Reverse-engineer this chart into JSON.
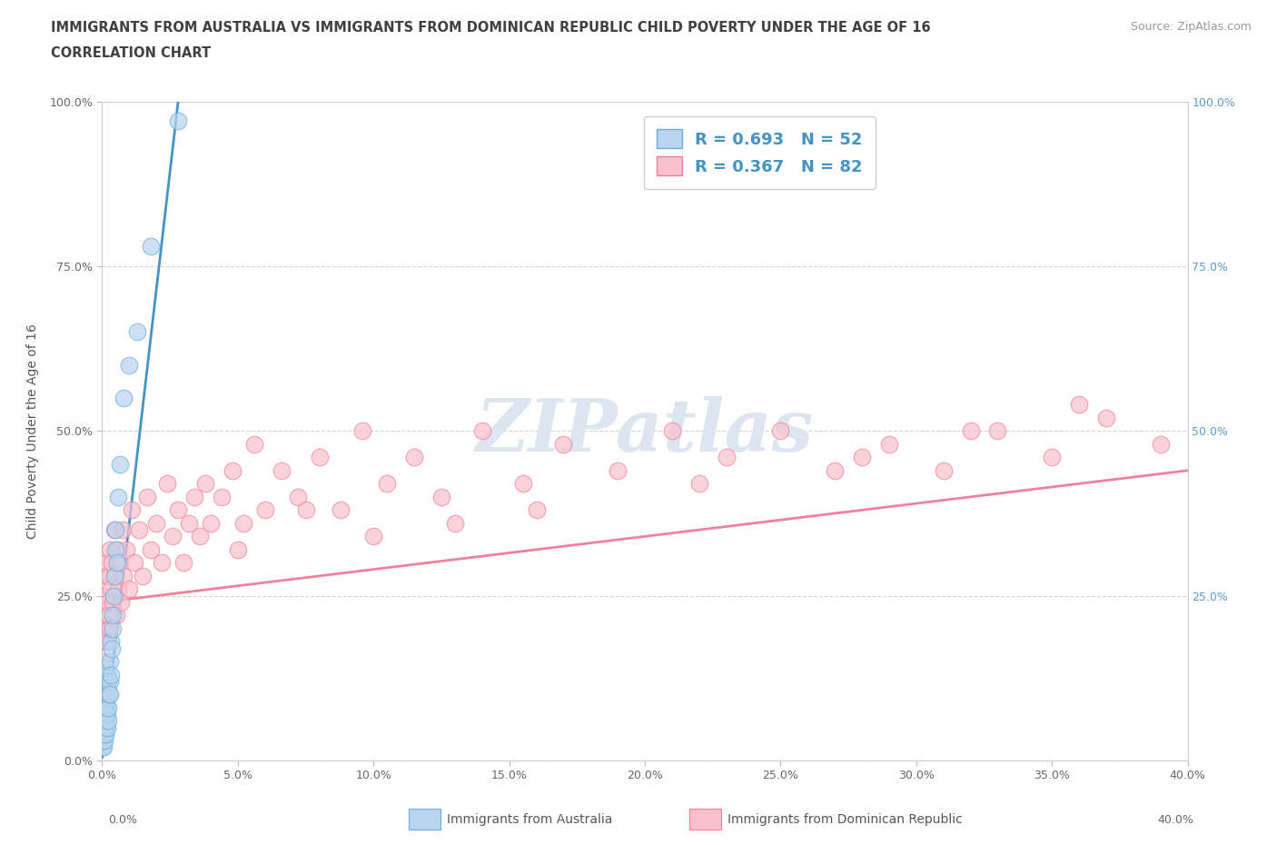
{
  "title_line1": "IMMIGRANTS FROM AUSTRALIA VS IMMIGRANTS FROM DOMINICAN REPUBLIC CHILD POVERTY UNDER THE AGE OF 16",
  "title_line2": "CORRELATION CHART",
  "source_text": "Source: ZipAtlas.com",
  "ylabel": "Child Poverty Under the Age of 16",
  "xmin": 0.0,
  "xmax": 0.4,
  "ymin": 0.0,
  "ymax": 1.0,
  "watermark": "ZIPatlas",
  "australia_color": "#b8d4ee",
  "australia_edge": "#6baed6",
  "dr_color": "#f9c0ce",
  "dr_edge": "#f08098",
  "line_australia_color": "#4393c3",
  "line_dr_color": "#f080a0",
  "R_australia": 0.693,
  "N_australia": 52,
  "R_dr": 0.367,
  "N_dr": 82,
  "legend_label_australia": "Immigrants from Australia",
  "legend_label_dr": "Immigrants from Dominican Republic",
  "australia_scatter_x": [
    0.0002,
    0.0003,
    0.0003,
    0.0004,
    0.0005,
    0.0005,
    0.0006,
    0.0006,
    0.0007,
    0.0007,
    0.0008,
    0.0008,
    0.0009,
    0.001,
    0.001,
    0.0011,
    0.0012,
    0.0012,
    0.0013,
    0.0014,
    0.0015,
    0.0015,
    0.0016,
    0.0017,
    0.0018,
    0.0018,
    0.0019,
    0.002,
    0.0021,
    0.0022,
    0.0023,
    0.0025,
    0.0027,
    0.0028,
    0.003,
    0.0032,
    0.0033,
    0.0035,
    0.0037,
    0.004,
    0.0043,
    0.0045,
    0.0047,
    0.005,
    0.0055,
    0.006,
    0.0065,
    0.008,
    0.01,
    0.013,
    0.018,
    0.028
  ],
  "australia_scatter_y": [
    0.02,
    0.04,
    0.06,
    0.02,
    0.08,
    0.03,
    0.07,
    0.12,
    0.05,
    0.1,
    0.04,
    0.09,
    0.06,
    0.03,
    0.08,
    0.05,
    0.07,
    0.12,
    0.04,
    0.09,
    0.06,
    0.14,
    0.08,
    0.11,
    0.05,
    0.13,
    0.07,
    0.1,
    0.06,
    0.12,
    0.08,
    0.1,
    0.12,
    0.15,
    0.1,
    0.13,
    0.18,
    0.17,
    0.2,
    0.22,
    0.25,
    0.28,
    0.32,
    0.35,
    0.3,
    0.4,
    0.45,
    0.55,
    0.6,
    0.65,
    0.78,
    0.97
  ],
  "dr_scatter_x": [
    0.0003,
    0.0005,
    0.0007,
    0.0009,
    0.001,
    0.0012,
    0.0014,
    0.0016,
    0.0018,
    0.002,
    0.0022,
    0.0024,
    0.0026,
    0.0028,
    0.003,
    0.0033,
    0.0036,
    0.004,
    0.0044,
    0.0048,
    0.0052,
    0.0056,
    0.006,
    0.0065,
    0.007,
    0.0075,
    0.008,
    0.009,
    0.01,
    0.011,
    0.012,
    0.0135,
    0.015,
    0.0165,
    0.018,
    0.02,
    0.022,
    0.024,
    0.026,
    0.028,
    0.03,
    0.032,
    0.034,
    0.036,
    0.038,
    0.04,
    0.044,
    0.048,
    0.052,
    0.056,
    0.06,
    0.066,
    0.072,
    0.08,
    0.088,
    0.096,
    0.105,
    0.115,
    0.125,
    0.14,
    0.155,
    0.17,
    0.19,
    0.21,
    0.23,
    0.25,
    0.27,
    0.29,
    0.31,
    0.33,
    0.35,
    0.37,
    0.39,
    0.1,
    0.16,
    0.22,
    0.28,
    0.32,
    0.36,
    0.05,
    0.075,
    0.13
  ],
  "dr_scatter_y": [
    0.15,
    0.2,
    0.18,
    0.22,
    0.25,
    0.2,
    0.28,
    0.22,
    0.3,
    0.18,
    0.24,
    0.28,
    0.22,
    0.32,
    0.2,
    0.26,
    0.3,
    0.24,
    0.35,
    0.28,
    0.22,
    0.32,
    0.26,
    0.3,
    0.24,
    0.35,
    0.28,
    0.32,
    0.26,
    0.38,
    0.3,
    0.35,
    0.28,
    0.4,
    0.32,
    0.36,
    0.3,
    0.42,
    0.34,
    0.38,
    0.3,
    0.36,
    0.4,
    0.34,
    0.42,
    0.36,
    0.4,
    0.44,
    0.36,
    0.48,
    0.38,
    0.44,
    0.4,
    0.46,
    0.38,
    0.5,
    0.42,
    0.46,
    0.4,
    0.5,
    0.42,
    0.48,
    0.44,
    0.5,
    0.46,
    0.5,
    0.44,
    0.48,
    0.44,
    0.5,
    0.46,
    0.52,
    0.48,
    0.34,
    0.38,
    0.42,
    0.46,
    0.5,
    0.54,
    0.32,
    0.38,
    0.36
  ],
  "australia_line_x": [
    0.0,
    0.028
  ],
  "australia_line_y": [
    0.005,
    1.0
  ],
  "dr_line_x": [
    0.0,
    0.4
  ],
  "dr_line_y": [
    0.24,
    0.44
  ],
  "xticks": [
    0.0,
    0.05,
    0.1,
    0.15,
    0.2,
    0.25,
    0.3,
    0.35,
    0.4
  ],
  "yticks": [
    0.0,
    0.25,
    0.5,
    0.75,
    1.0
  ],
  "grid_color": "#d0d0d0",
  "bg_color": "#ffffff",
  "title_color": "#404040",
  "watermark_color": "#dde6f0",
  "right_ytick_color": "#5B9BD5"
}
